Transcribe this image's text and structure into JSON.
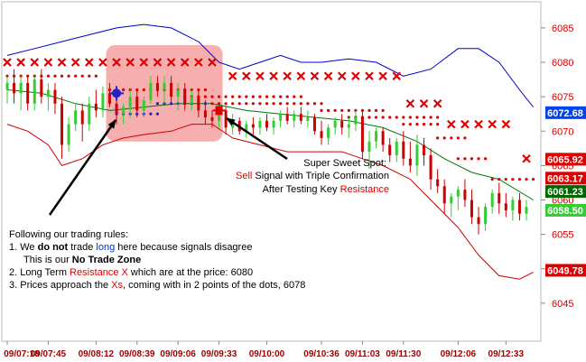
{
  "chart_data": {
    "type": "candlestick",
    "title": "",
    "xlabel": "",
    "ylabel": "",
    "ylim": [
      6040,
      6088
    ],
    "y_ticks": [
      6045,
      6050,
      6055,
      6060,
      6065,
      6070,
      6075,
      6080,
      6085
    ],
    "y_ticks_text": [
      "6045",
      "6050",
      "6055",
      "6060",
      "6065",
      "6070",
      "6075",
      "6080",
      "6085"
    ],
    "x_ticks": [
      "09/07:18",
      "09/07:45",
      "09/08:12",
      "09/08:39",
      "09/09:06",
      "09/09:33",
      "09/10:00",
      "09/10:36",
      "09/11:03",
      "09/11:30",
      "09/12:06",
      "09/12:33"
    ],
    "x_tick_index": [
      0,
      6,
      13,
      19,
      25,
      31,
      38,
      46,
      52,
      58,
      66,
      73
    ],
    "colors": {
      "bull": "#33cc33",
      "bear": "#cc0000",
      "upper_band": "#0000cc",
      "lower_band": "#cc0000",
      "mid_line": "#007700",
      "dots": "#dd0000",
      "blue_dots": "#2222cc",
      "x_marks": "#dd0000",
      "zone_fill": "#f4a0a0",
      "axis_text": "#cc0000",
      "long_word": "#0033cc",
      "red_word": "#dd0000"
    },
    "bars": [
      {
        "o": 6076.0,
        "h": 6078.0,
        "l": 6074.0,
        "c": 6077.0
      },
      {
        "o": 6077.0,
        "h": 6079.0,
        "l": 6074.0,
        "c": 6075.5
      },
      {
        "o": 6075.5,
        "h": 6078.0,
        "l": 6073.0,
        "c": 6077.0
      },
      {
        "o": 6077.0,
        "h": 6078.0,
        "l": 6073.0,
        "c": 6074.0
      },
      {
        "o": 6074.0,
        "h": 6078.0,
        "l": 6073.0,
        "c": 6077.5
      },
      {
        "o": 6077.5,
        "h": 6079.0,
        "l": 6074.0,
        "c": 6075.0
      },
      {
        "o": 6075.0,
        "h": 6077.0,
        "l": 6073.0,
        "c": 6076.0
      },
      {
        "o": 6076.0,
        "h": 6077.0,
        "l": 6072.5,
        "c": 6074.0
      },
      {
        "o": 6074.0,
        "h": 6075.0,
        "l": 6066.0,
        "c": 6068.0
      },
      {
        "o": 6068.0,
        "h": 6072.0,
        "l": 6067.0,
        "c": 6071.0
      },
      {
        "o": 6071.0,
        "h": 6074.0,
        "l": 6070.0,
        "c": 6073.0
      },
      {
        "o": 6073.0,
        "h": 6074.0,
        "l": 6068.5,
        "c": 6071.0
      },
      {
        "o": 6071.0,
        "h": 6075.0,
        "l": 6070.0,
        "c": 6074.0
      },
      {
        "o": 6074.0,
        "h": 6076.0,
        "l": 6072.0,
        "c": 6073.0
      },
      {
        "o": 6073.0,
        "h": 6076.5,
        "l": 6072.0,
        "c": 6075.5
      },
      {
        "o": 6075.5,
        "h": 6077.0,
        "l": 6073.5,
        "c": 6074.0
      },
      {
        "o": 6074.0,
        "h": 6075.0,
        "l": 6071.0,
        "c": 6072.5
      },
      {
        "o": 6072.5,
        "h": 6074.0,
        "l": 6071.0,
        "c": 6073.5
      },
      {
        "o": 6073.5,
        "h": 6076.0,
        "l": 6072.0,
        "c": 6075.0
      },
      {
        "o": 6075.0,
        "h": 6076.0,
        "l": 6072.0,
        "c": 6073.0
      },
      {
        "o": 6073.0,
        "h": 6075.0,
        "l": 6072.0,
        "c": 6074.5
      },
      {
        "o": 6074.5,
        "h": 6078.0,
        "l": 6074.0,
        "c": 6077.0
      },
      {
        "o": 6077.0,
        "h": 6078.0,
        "l": 6075.0,
        "c": 6076.0
      },
      {
        "o": 6076.0,
        "h": 6078.0,
        "l": 6074.0,
        "c": 6077.0
      },
      {
        "o": 6077.0,
        "h": 6078.0,
        "l": 6074.0,
        "c": 6075.0
      },
      {
        "o": 6075.0,
        "h": 6077.0,
        "l": 6073.0,
        "c": 6076.0
      },
      {
        "o": 6076.0,
        "h": 6077.0,
        "l": 6073.0,
        "c": 6074.0
      },
      {
        "o": 6074.0,
        "h": 6076.0,
        "l": 6073.0,
        "c": 6075.0
      },
      {
        "o": 6075.0,
        "h": 6076.0,
        "l": 6072.0,
        "c": 6073.0
      },
      {
        "o": 6073.0,
        "h": 6074.5,
        "l": 6071.0,
        "c": 6072.0
      },
      {
        "o": 6072.0,
        "h": 6073.0,
        "l": 6070.5,
        "c": 6071.5
      },
      {
        "o": 6071.5,
        "h": 6073.5,
        "l": 6070.5,
        "c": 6073.0
      },
      {
        "o": 6073.0,
        "h": 6073.5,
        "l": 6069.5,
        "c": 6070.5
      },
      {
        "o": 6070.5,
        "h": 6072.5,
        "l": 6069.5,
        "c": 6071.5
      },
      {
        "o": 6071.5,
        "h": 6072.0,
        "l": 6069.5,
        "c": 6070.0
      },
      {
        "o": 6070.0,
        "h": 6071.5,
        "l": 6069.0,
        "c": 6071.0
      },
      {
        "o": 6071.0,
        "h": 6072.0,
        "l": 6069.5,
        "c": 6070.5
      },
      {
        "o": 6070.5,
        "h": 6072.0,
        "l": 6069.5,
        "c": 6071.5
      },
      {
        "o": 6071.5,
        "h": 6072.5,
        "l": 6070.0,
        "c": 6070.5
      },
      {
        "o": 6070.5,
        "h": 6072.0,
        "l": 6069.5,
        "c": 6071.5
      },
      {
        "o": 6071.5,
        "h": 6073.0,
        "l": 6070.5,
        "c": 6072.5
      },
      {
        "o": 6072.5,
        "h": 6073.5,
        "l": 6071.0,
        "c": 6071.5
      },
      {
        "o": 6071.5,
        "h": 6073.0,
        "l": 6070.5,
        "c": 6072.5
      },
      {
        "o": 6072.5,
        "h": 6073.5,
        "l": 6071.0,
        "c": 6071.5
      },
      {
        "o": 6071.5,
        "h": 6073.0,
        "l": 6070.5,
        "c": 6072.0
      },
      {
        "o": 6072.0,
        "h": 6072.5,
        "l": 6069.5,
        "c": 6070.0
      },
      {
        "o": 6070.0,
        "h": 6071.5,
        "l": 6068.0,
        "c": 6069.0
      },
      {
        "o": 6069.0,
        "h": 6071.0,
        "l": 6068.0,
        "c": 6070.5
      },
      {
        "o": 6070.5,
        "h": 6072.0,
        "l": 6069.5,
        "c": 6071.5
      },
      {
        "o": 6071.5,
        "h": 6072.5,
        "l": 6069.5,
        "c": 6070.5
      },
      {
        "o": 6070.5,
        "h": 6072.0,
        "l": 6069.0,
        "c": 6071.0
      },
      {
        "o": 6071.0,
        "h": 6073.0,
        "l": 6070.0,
        "c": 6072.0
      },
      {
        "o": 6072.0,
        "h": 6073.0,
        "l": 6066.0,
        "c": 6067.0
      },
      {
        "o": 6067.0,
        "h": 6070.0,
        "l": 6064.5,
        "c": 6068.5
      },
      {
        "o": 6068.5,
        "h": 6070.5,
        "l": 6067.5,
        "c": 6070.0
      },
      {
        "o": 6070.0,
        "h": 6070.5,
        "l": 6067.0,
        "c": 6068.0
      },
      {
        "o": 6068.0,
        "h": 6069.0,
        "l": 6065.5,
        "c": 6066.5
      },
      {
        "o": 6066.5,
        "h": 6069.0,
        "l": 6065.5,
        "c": 6068.5
      },
      {
        "o": 6068.5,
        "h": 6070.0,
        "l": 6065.0,
        "c": 6066.0
      },
      {
        "o": 6066.0,
        "h": 6068.5,
        "l": 6064.0,
        "c": 6065.0
      },
      {
        "o": 6065.0,
        "h": 6069.5,
        "l": 6063.5,
        "c": 6068.0
      },
      {
        "o": 6068.0,
        "h": 6069.0,
        "l": 6065.0,
        "c": 6066.5
      },
      {
        "o": 6066.5,
        "h": 6067.5,
        "l": 6061.5,
        "c": 6063.0
      },
      {
        "o": 6063.0,
        "h": 6064.5,
        "l": 6061.0,
        "c": 6062.0
      },
      {
        "o": 6062.0,
        "h": 6063.0,
        "l": 6058.0,
        "c": 6059.5
      },
      {
        "o": 6059.5,
        "h": 6061.0,
        "l": 6057.5,
        "c": 6060.5
      },
      {
        "o": 6060.5,
        "h": 6062.0,
        "l": 6058.5,
        "c": 6061.5
      },
      {
        "o": 6061.5,
        "h": 6063.0,
        "l": 6059.0,
        "c": 6060.0
      },
      {
        "o": 6060.0,
        "h": 6061.5,
        "l": 6056.5,
        "c": 6057.5
      },
      {
        "o": 6057.5,
        "h": 6059.0,
        "l": 6055.0,
        "c": 6056.5
      },
      {
        "o": 6056.5,
        "h": 6059.5,
        "l": 6055.5,
        "c": 6059.0
      },
      {
        "o": 6059.0,
        "h": 6061.5,
        "l": 6058.0,
        "c": 6061.0
      },
      {
        "o": 6061.0,
        "h": 6062.5,
        "l": 6058.0,
        "c": 6059.5
      },
      {
        "o": 6059.5,
        "h": 6061.0,
        "l": 6057.5,
        "c": 6058.5
      },
      {
        "o": 6058.5,
        "h": 6060.5,
        "l": 6057.0,
        "c": 6060.0
      },
      {
        "o": 6060.0,
        "h": 6061.0,
        "l": 6057.0,
        "c": 6058.0
      },
      {
        "o": 6058.0,
        "h": 6060.0,
        "l": 6057.0,
        "c": 6059.0
      }
    ],
    "upper_band": [
      [
        0,
        6081
      ],
      [
        4,
        6082
      ],
      [
        8,
        6083
      ],
      [
        12,
        6084
      ],
      [
        16,
        6085
      ],
      [
        20,
        6085.5
      ],
      [
        24,
        6085
      ],
      [
        28,
        6083
      ],
      [
        31,
        6080
      ],
      [
        34,
        6079
      ],
      [
        37,
        6080
      ],
      [
        40,
        6081
      ],
      [
        43,
        6080
      ],
      [
        46,
        6080
      ],
      [
        50,
        6080.5
      ],
      [
        54,
        6080
      ],
      [
        58,
        6078
      ],
      [
        62,
        6079
      ],
      [
        66,
        6082
      ],
      [
        69,
        6082
      ],
      [
        72,
        6080
      ],
      [
        75,
        6076
      ],
      [
        77,
        6073.5
      ]
    ],
    "lower_band": [
      [
        0,
        6071
      ],
      [
        3,
        6070
      ],
      [
        6,
        6068
      ],
      [
        8,
        6065
      ],
      [
        11,
        6066
      ],
      [
        14,
        6068
      ],
      [
        17,
        6069
      ],
      [
        20,
        6069.5
      ],
      [
        24,
        6070
      ],
      [
        27,
        6071
      ],
      [
        30,
        6071
      ],
      [
        33,
        6069
      ],
      [
        37,
        6068
      ],
      [
        41,
        6067
      ],
      [
        45,
        6067
      ],
      [
        49,
        6067
      ],
      [
        52,
        6066
      ],
      [
        55,
        6065
      ],
      [
        59,
        6063
      ],
      [
        63,
        6059
      ],
      [
        66,
        6056
      ],
      [
        69,
        6052
      ],
      [
        72,
        6049
      ],
      [
        75,
        6048.5
      ],
      [
        77,
        6049.5
      ]
    ],
    "mid_line": [
      [
        0,
        6076
      ],
      [
        5,
        6075.5
      ],
      [
        10,
        6074
      ],
      [
        15,
        6073
      ],
      [
        20,
        6073.5
      ],
      [
        25,
        6074
      ],
      [
        30,
        6074
      ],
      [
        35,
        6073
      ],
      [
        40,
        6072.5
      ],
      [
        45,
        6072
      ],
      [
        50,
        6071.5
      ],
      [
        55,
        6070.5
      ],
      [
        60,
        6068.5
      ],
      [
        64,
        6066
      ],
      [
        68,
        6064
      ],
      [
        72,
        6063
      ],
      [
        77,
        6060
      ]
    ],
    "dot_segments": [
      {
        "from": 0,
        "to": 13,
        "value": 6078
      },
      {
        "from": 15,
        "to": 29,
        "value": 6076
      },
      {
        "from": 26,
        "to": 43,
        "value": 6075
      },
      {
        "from": 30,
        "to": 46,
        "value": 6074
      },
      {
        "from": 46,
        "to": 55,
        "value": 6073
      },
      {
        "from": 50,
        "to": 63,
        "value": 6072
      },
      {
        "from": 58,
        "to": 63,
        "value": 6071
      },
      {
        "from": 63,
        "to": 67,
        "value": 6069
      },
      {
        "from": 66,
        "to": 70,
        "value": 6066
      },
      {
        "from": 71,
        "to": 77,
        "value": 6063
      }
    ],
    "blue_dot_segments": [
      {
        "from": 16,
        "to": 22,
        "value": 6072.5
      },
      {
        "from": 22,
        "to": 29,
        "value": 6074
      }
    ],
    "x_marks": [
      {
        "from": 0,
        "to": 30,
        "value": 6080
      },
      {
        "from": 33,
        "to": 58,
        "value": 6078
      },
      {
        "from": 59,
        "to": 63,
        "value": 6074
      },
      {
        "from": 65,
        "to": 74,
        "value": 6071
      },
      {
        "i": 76,
        "value": 6066
      }
    ],
    "signals": [
      {
        "i": 16,
        "value": 6075.5,
        "color": "#2222cc",
        "shape": "cross"
      },
      {
        "i": 31,
        "value": 6073,
        "color": "#dd0000",
        "shape": "square"
      }
    ],
    "zone": {
      "from": 15,
      "to": 31,
      "top": 6082.5,
      "bottom": 6068.5
    },
    "price_labels": [
      {
        "text": "6072.68",
        "value": 6072.68,
        "bg": "#0044ee",
        "fg": "#ffffff"
      },
      {
        "text": "6065.92",
        "value": 6065.92,
        "bg": "#dd0000",
        "fg": "#ffffff"
      },
      {
        "text": "6063.17",
        "value": 6063.17,
        "bg": "#dd0000",
        "fg": "#ffffff"
      },
      {
        "text": "6061.23",
        "value": 6061.23,
        "bg": "#006600",
        "fg": "#ffffff"
      },
      {
        "text": "6058.50",
        "value": 6058.5,
        "bg": "#33cc33",
        "fg": "#ffffff"
      },
      {
        "text": "6049.78",
        "value": 6049.78,
        "bg": "#dd0000",
        "fg": "#ffffff"
      }
    ],
    "annotations": {
      "sweet_spot": {
        "line1": "Super Sweet Spot:",
        "line2_red": "Sell",
        "line2_rest": " Signal with Triple Confirmation",
        "line3_a": "After Testing Key ",
        "line3_red": "Resistance"
      },
      "rules": {
        "heading": "Following our trading rules:",
        "r1_a": "1. We ",
        "r1_bold": "do not",
        "r1_b": " trade ",
        "r1_blue": "long",
        "r1_c": " here because signals disagree",
        "r1b_a": "This is our ",
        "r1b_bold": "No Trade Zone",
        "r2_a": "2. Long Term ",
        "r2_red": "Resistance X",
        "r2_b": " which are at the price: 6080",
        "r3_a": "3. Prices approach the ",
        "r3_red": "Xs",
        "r3_b": ", coming with in 2 points of the dots, 6078"
      }
    }
  }
}
